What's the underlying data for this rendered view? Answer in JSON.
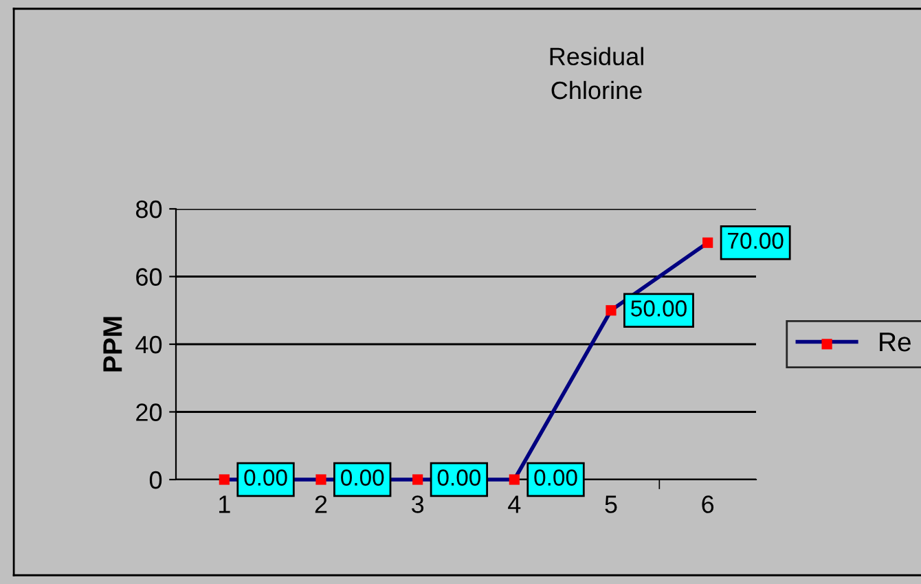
{
  "chart_data": {
    "type": "line",
    "title": "Residual\nChlorine",
    "ylabel": "PPM",
    "categories": [
      "1",
      "2",
      "3",
      "4",
      "5",
      "6"
    ],
    "series": [
      {
        "name": "Re",
        "color": "#000080",
        "colors": [
          "#ff0000",
          "#ff0000",
          "#ff0000",
          "#ff0000",
          "#ff0000",
          "#ff0000"
        ],
        "values": [
          0,
          0,
          0,
          0,
          50,
          70
        ],
        "value_labels": [
          "0.00",
          "0.00",
          "0.00",
          "0.00",
          "50.00",
          "70.00"
        ]
      }
    ],
    "ylim": [
      0,
      80
    ],
    "yticks": [
      0,
      20,
      40,
      60,
      80
    ],
    "grid": "y",
    "legend": "right",
    "marker": "square",
    "line_style": "solid"
  }
}
